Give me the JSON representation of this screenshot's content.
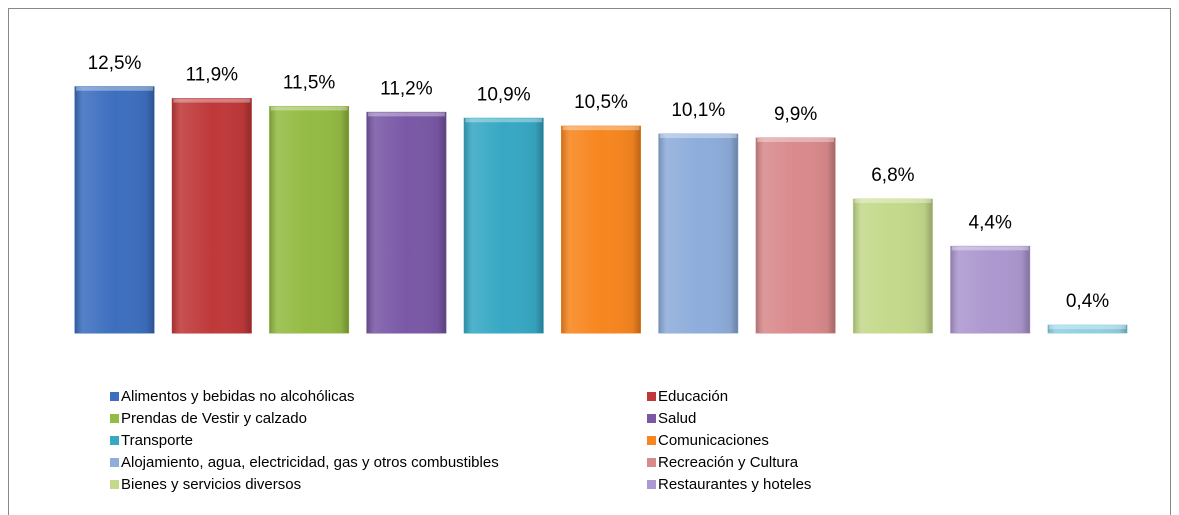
{
  "chart_data": {
    "type": "bar",
    "categories": [
      "Alimentos y bebidas no alcohólicas",
      "Educación",
      "Prendas de Vestir y calzado",
      "Salud",
      "Transporte",
      "Comunicaciones",
      "Alojamiento, agua, electricidad, gas y otros combustibles",
      "Recreación y Cultura",
      "Bienes y servicios diversos",
      "Restaurantes y hoteles",
      null
    ],
    "values": [
      12.5,
      11.9,
      11.5,
      11.2,
      10.9,
      10.5,
      10.1,
      9.9,
      6.8,
      4.4,
      0.4
    ],
    "value_labels": [
      "12,5%",
      "11,9%",
      "11,5%",
      "11,2%",
      "10,9%",
      "10,5%",
      "10,1%",
      "9,9%",
      "6,8%",
      "4,4%",
      "0,4%"
    ],
    "colors": [
      "#3d6fbf",
      "#c0393a",
      "#94bb44",
      "#7a58a6",
      "#37a8c4",
      "#f7861f",
      "#8eaddb",
      "#d98a8c",
      "#c4d98b",
      "#ad98cf",
      "#8fd0e3"
    ],
    "legend": "bottom"
  }
}
